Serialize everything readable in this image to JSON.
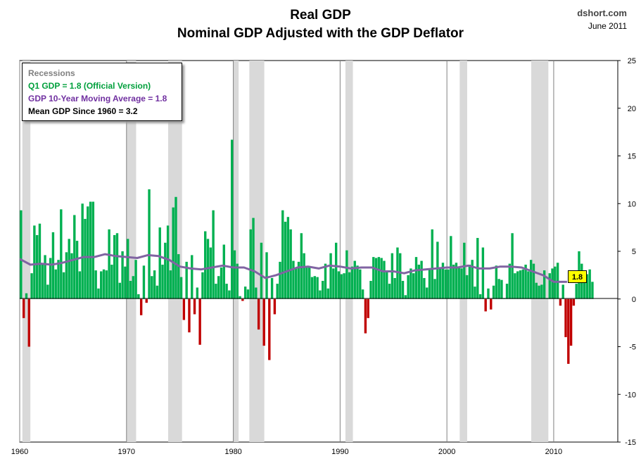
{
  "header": {
    "title": "Real GDP",
    "subtitle": "Nominal GDP Adjusted with the GDP Deflator",
    "brand": "dshort.com",
    "date": "June 2011"
  },
  "legend": {
    "recessions": "Recessions",
    "q1": "Q1 GDP = 1.8 (Official Version)",
    "ma": "GDP 10-Year Moving Average = 1.8",
    "mean": "Mean GDP  Since 1960 = 3.2"
  },
  "callout": "1.8",
  "colors": {
    "positive": "#00b050",
    "negative": "#c00000",
    "moving_average": "#8064a2",
    "recession": "#d9d9d9",
    "recession_text": "#808080",
    "q1_text": "#00a03c",
    "ma_text": "#7030a0"
  },
  "chart_data": {
    "type": "bar",
    "x_start": 1960.0,
    "x_step": 0.25,
    "x_ticks": [
      "1960",
      "1970",
      "1980",
      "1990",
      "2000",
      "2010"
    ],
    "y_ticks": [
      "25",
      "20",
      "15",
      "10",
      "5",
      "0",
      "-5",
      "-10",
      "-15"
    ],
    "xlim": [
      1960,
      2016
    ],
    "ylim": [
      -15,
      25
    ],
    "grid": "vertical at decades",
    "recessions": [
      [
        1960.25,
        1961.0
      ],
      [
        1970.0,
        1970.9
      ],
      [
        1973.9,
        1975.2
      ],
      [
        1980.0,
        1980.5
      ],
      [
        1981.5,
        1982.9
      ],
      [
        1990.5,
        1991.2
      ],
      [
        2001.2,
        2001.9
      ],
      [
        2007.9,
        2009.5
      ]
    ],
    "series": [
      {
        "name": "Q1 GDP",
        "values": [
          9.3,
          -2.0,
          0.6,
          -5.0,
          2.7,
          7.7,
          6.7,
          7.9,
          3.6,
          4.6,
          1.5,
          4.3,
          7.0,
          3.1,
          4.1,
          9.4,
          2.8,
          4.9,
          6.3,
          4.8,
          8.8,
          6.1,
          2.9,
          10.0,
          8.4,
          9.7,
          10.2,
          10.2,
          3.0,
          1.1,
          2.9,
          3.1,
          3.0,
          7.3,
          3.6,
          6.7,
          6.9,
          1.7,
          5.0,
          3.4,
          6.3,
          1.9,
          2.4,
          4.1,
          0.5,
          -1.7,
          3.5,
          -0.4,
          11.5,
          2.4,
          3.0,
          1.4,
          7.5,
          3.6,
          5.9,
          7.7,
          3.0,
          9.6,
          10.7,
          4.7,
          2.3,
          -2.2,
          3.9,
          -3.5,
          4.6,
          -1.6,
          1.2,
          -4.8,
          2.8,
          7.1,
          6.3,
          5.4,
          9.3,
          1.6,
          2.4,
          3.3,
          5.7,
          1.6,
          0.9,
          16.7,
          5.1,
          3.7,
          0.3,
          -0.2,
          1.3,
          1.0,
          7.3,
          8.5,
          1.2,
          -3.2,
          5.9,
          -4.9,
          4.9,
          -6.4,
          2.2,
          -1.6,
          1.6,
          3.9,
          9.3,
          8.1,
          8.6,
          7.3,
          4.0,
          3.3,
          3.9,
          6.9,
          4.8,
          3.3,
          3.3,
          2.3,
          2.4,
          2.3,
          0.9,
          1.9,
          3.7,
          1.1,
          4.8,
          3.2,
          5.9,
          2.9,
          2.6,
          2.7,
          5.1,
          2.8,
          3.4,
          4.0,
          3.5,
          3.1,
          1.0,
          -3.6,
          -2.0,
          1.9,
          4.4,
          4.3,
          4.4,
          4.3,
          4.0,
          2.9,
          1.6,
          4.8,
          2.2,
          5.4,
          4.8,
          1.9,
          0.4,
          2.5,
          3.2,
          2.7,
          4.4,
          3.6,
          4.0,
          2.2,
          1.2,
          3.1,
          7.3,
          2.1,
          6.0,
          3.2,
          3.8,
          3.1,
          3.1,
          6.6,
          3.6,
          3.8,
          3.4,
          3.2,
          5.9,
          2.5,
          3.6,
          4.1,
          1.3,
          6.4,
          0.5,
          5.4,
          -1.3,
          1.1,
          -1.1,
          1.4,
          3.5,
          2.1,
          2.0,
          0.1,
          1.6,
          3.7,
          6.9,
          2.7,
          2.9,
          3.0,
          3.1,
          3.6,
          2.9,
          4.1,
          3.7,
          1.7,
          1.4,
          1.5,
          3.0,
          0.1,
          2.7,
          3.2,
          3.4,
          3.8,
          -0.7,
          1.5,
          -4.0,
          -6.8,
          -4.9,
          -0.7,
          1.6,
          5.0,
          3.7,
          1.7,
          2.6,
          3.1,
          1.8
        ]
      },
      {
        "name": "GDP 10-Year Moving Average",
        "points": [
          [
            1960,
            4.2
          ],
          [
            1961,
            3.6
          ],
          [
            1962,
            3.7
          ],
          [
            1963,
            3.6
          ],
          [
            1964,
            3.8
          ],
          [
            1965,
            4.1
          ],
          [
            1966,
            4.4
          ],
          [
            1967,
            4.4
          ],
          [
            1968,
            4.7
          ],
          [
            1969,
            4.5
          ],
          [
            1970,
            4.4
          ],
          [
            1971,
            4.3
          ],
          [
            1972,
            4.6
          ],
          [
            1973,
            4.5
          ],
          [
            1974,
            4.1
          ],
          [
            1975,
            3.4
          ],
          [
            1976,
            3.2
          ],
          [
            1977,
            3.1
          ],
          [
            1978,
            3.3
          ],
          [
            1979,
            3.5
          ],
          [
            1980,
            3.3
          ],
          [
            1981,
            3.3
          ],
          [
            1982,
            2.9
          ],
          [
            1983,
            2.2
          ],
          [
            1984,
            2.5
          ],
          [
            1985,
            2.9
          ],
          [
            1986,
            3.3
          ],
          [
            1987,
            3.4
          ],
          [
            1988,
            3.2
          ],
          [
            1989,
            3.5
          ],
          [
            1990,
            3.4
          ],
          [
            1991,
            3.2
          ],
          [
            1992,
            3.3
          ],
          [
            1993,
            3.3
          ],
          [
            1994,
            2.9
          ],
          [
            1995,
            2.9
          ],
          [
            1996,
            2.7
          ],
          [
            1997,
            3.0
          ],
          [
            1998,
            3.1
          ],
          [
            1999,
            3.2
          ],
          [
            2000,
            3.3
          ],
          [
            2001,
            3.3
          ],
          [
            2002,
            3.5
          ],
          [
            2003,
            3.2
          ],
          [
            2004,
            3.2
          ],
          [
            2005,
            3.4
          ],
          [
            2006,
            3.4
          ],
          [
            2007,
            3.3
          ],
          [
            2008,
            2.9
          ],
          [
            2009,
            2.5
          ],
          [
            2010,
            1.8
          ],
          [
            2011.25,
            1.8
          ]
        ]
      }
    ]
  }
}
